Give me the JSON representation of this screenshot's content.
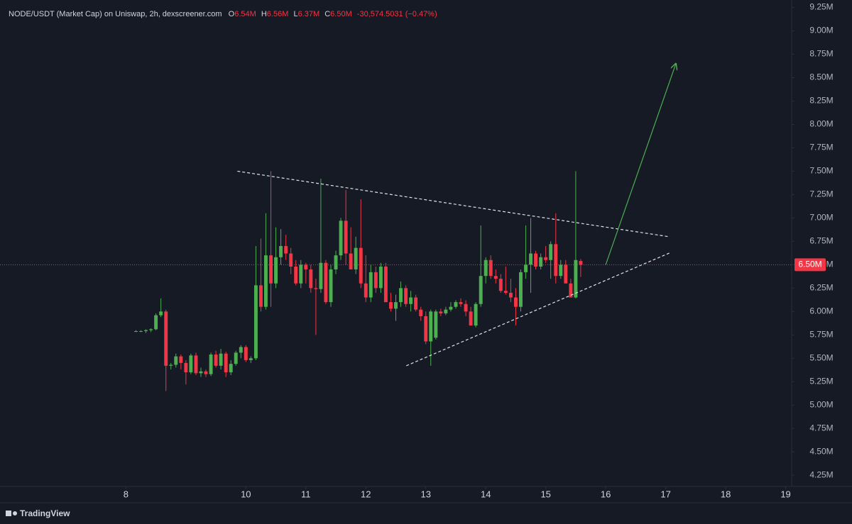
{
  "chart_data": {
    "type": "candlestick",
    "title": "NODE/USDT (Market Cap) on Uniswap, 2h, dexscreener.com",
    "ohlc_header": {
      "o_label": "O",
      "o": "6.54M",
      "h_label": "H",
      "h": "6.56M",
      "l_label": "L",
      "l": "6.37M",
      "c_label": "C",
      "c": "6.50M",
      "change": "-30,574.5031 (−0.47%)"
    },
    "x": [
      8.167,
      8.25,
      8.333,
      8.417,
      8.5,
      8.583,
      8.667,
      8.75,
      8.833,
      8.917,
      9,
      9.083,
      9.167,
      9.25,
      9.333,
      9.417,
      9.5,
      9.583,
      9.667,
      9.75,
      9.833,
      9.917,
      10,
      10.083,
      10.167,
      10.25,
      10.333,
      10.417,
      10.5,
      10.583,
      10.667,
      10.75,
      10.833,
      10.917,
      11,
      11.083,
      11.167,
      11.25,
      11.333,
      11.417,
      11.5,
      11.583,
      11.667,
      11.75,
      11.833,
      11.917,
      12,
      12.083,
      12.167,
      12.25,
      12.333,
      12.417,
      12.5,
      12.583,
      12.667,
      12.75,
      12.833,
      12.917,
      13,
      13.083,
      13.167,
      13.25,
      13.333,
      13.417,
      13.5,
      13.583,
      13.667,
      13.75,
      13.833,
      13.917,
      14,
      14.083,
      14.167,
      14.25,
      14.333,
      14.417,
      14.5,
      14.583,
      14.667,
      14.75,
      14.833,
      14.917,
      15,
      15.083,
      15.167,
      15.25,
      15.333,
      15.417,
      15.5,
      15.583
    ],
    "open": [
      5.79,
      5.79,
      5.79,
      5.8,
      5.81,
      5.96,
      6.0,
      5.42,
      5.43,
      5.52,
      5.45,
      5.35,
      5.53,
      5.34,
      5.36,
      5.33,
      5.54,
      5.42,
      5.55,
      5.35,
      5.44,
      5.56,
      5.62,
      5.48,
      5.5,
      6.28,
      6.05,
      6.6,
      6.3,
      6.58,
      6.7,
      6.62,
      6.48,
      6.3,
      6.5,
      6.45,
      6.25,
      6.24,
      6.52,
      6.1,
      6.45,
      6.6,
      6.97,
      6.62,
      6.45,
      6.68,
      6.3,
      6.15,
      6.42,
      6.25,
      6.48,
      6.1,
      6.03,
      6.1,
      6.25,
      6.08,
      6.15,
      6.02,
      5.95,
      5.68,
      5.72,
      6.0,
      5.98,
      6.02,
      6.05,
      6.1,
      6.08,
      6.0,
      5.85,
      6.08,
      6.38,
      6.55,
      6.38,
      6.35,
      6.22,
      6.2,
      6.15,
      6.05,
      6.42,
      6.5,
      6.62,
      6.48,
      6.58,
      6.55,
      6.72,
      6.38,
      6.5,
      6.3,
      6.15,
      6.54
    ],
    "high": [
      5.8,
      5.8,
      5.81,
      5.82,
      5.98,
      6.14,
      6.02,
      5.45,
      5.55,
      5.54,
      5.48,
      5.55,
      5.56,
      5.4,
      5.38,
      5.56,
      5.58,
      5.6,
      5.57,
      5.48,
      5.58,
      5.64,
      5.64,
      5.52,
      6.7,
      6.78,
      7.05,
      7.5,
      6.9,
      6.88,
      6.82,
      6.68,
      6.55,
      6.55,
      6.52,
      6.5,
      6.35,
      7.42,
      6.55,
      6.5,
      6.65,
      7.0,
      7.3,
      6.9,
      6.8,
      7.2,
      6.6,
      6.5,
      6.48,
      6.52,
      6.52,
      6.2,
      6.18,
      6.32,
      6.28,
      6.22,
      6.18,
      6.05,
      6.0,
      6.02,
      6.02,
      6.03,
      6.05,
      6.1,
      6.12,
      6.14,
      6.12,
      6.05,
      6.1,
      6.92,
      6.58,
      6.6,
      6.45,
      6.4,
      6.48,
      6.35,
      6.25,
      6.45,
      6.92,
      7.0,
      6.65,
      6.62,
      6.7,
      6.75,
      7.05,
      6.55,
      6.55,
      6.35,
      7.5,
      6.56
    ],
    "low": [
      5.78,
      5.78,
      5.77,
      5.78,
      5.8,
      5.94,
      5.15,
      5.38,
      5.4,
      5.38,
      5.22,
      5.33,
      5.32,
      5.3,
      5.3,
      5.31,
      5.4,
      5.38,
      5.3,
      5.32,
      5.42,
      5.5,
      5.46,
      5.45,
      5.48,
      6.0,
      6.02,
      6.05,
      6.25,
      6.5,
      6.55,
      6.4,
      6.28,
      6.25,
      6.3,
      6.2,
      5.75,
      6.2,
      6.08,
      6.05,
      6.4,
      6.55,
      6.5,
      6.45,
      6.4,
      6.25,
      6.1,
      6.1,
      6.2,
      6.2,
      6.1,
      6.0,
      5.9,
      6.05,
      6.05,
      6.0,
      6.0,
      5.9,
      5.65,
      5.42,
      5.7,
      5.95,
      5.96,
      6.0,
      6.03,
      6.05,
      5.95,
      5.85,
      5.83,
      6.05,
      6.3,
      6.35,
      6.3,
      6.2,
      6.18,
      6.1,
      5.85,
      6.0,
      6.35,
      6.2,
      6.45,
      6.45,
      6.52,
      6.35,
      6.3,
      6.35,
      6.3,
      6.15,
      6.14,
      6.37
    ],
    "close": [
      5.79,
      5.79,
      5.8,
      5.81,
      5.96,
      6.0,
      5.42,
      5.43,
      5.52,
      5.45,
      5.35,
      5.53,
      5.34,
      5.36,
      5.33,
      5.54,
      5.42,
      5.55,
      5.35,
      5.44,
      5.56,
      5.62,
      5.48,
      5.5,
      6.28,
      6.05,
      6.6,
      6.3,
      6.58,
      6.7,
      6.62,
      6.48,
      6.3,
      6.5,
      6.45,
      6.25,
      6.24,
      6.52,
      6.1,
      6.45,
      6.6,
      6.97,
      6.62,
      6.45,
      6.68,
      6.3,
      6.15,
      6.42,
      6.25,
      6.48,
      6.1,
      6.03,
      6.1,
      6.25,
      6.08,
      6.15,
      6.02,
      5.95,
      5.68,
      6.0,
      6.0,
      5.98,
      6.02,
      6.05,
      6.1,
      6.08,
      6.0,
      5.85,
      6.08,
      6.38,
      6.55,
      6.38,
      6.35,
      6.22,
      6.2,
      6.15,
      6.05,
      6.42,
      6.5,
      6.62,
      6.48,
      6.58,
      6.55,
      6.72,
      6.38,
      6.5,
      6.3,
      6.15,
      6.55,
      6.5
    ],
    "up_color": "#4caf50",
    "down_color": "#f23645",
    "xlim": [
      5.9,
      19.1
    ],
    "ylim": [
      4.13,
      9.33
    ],
    "xticks": [
      8,
      10,
      11,
      12,
      13,
      14,
      15,
      16,
      17,
      18,
      19
    ],
    "yticks": [
      {
        "value": 4.25,
        "label": "4.25M"
      },
      {
        "value": 4.5,
        "label": "4.50M"
      },
      {
        "value": 4.75,
        "label": "4.75M"
      },
      {
        "value": 5,
        "label": "5.00M"
      },
      {
        "value": 5.25,
        "label": "5.25M"
      },
      {
        "value": 5.5,
        "label": "5.50M"
      },
      {
        "value": 5.75,
        "label": "5.75M"
      },
      {
        "value": 6,
        "label": "6.00M"
      },
      {
        "value": 6.25,
        "label": "6.25M"
      },
      {
        "value": 6.5,
        "label": "6.50M"
      },
      {
        "value": 6.75,
        "label": "6.75M"
      },
      {
        "value": 7,
        "label": "7.00M"
      },
      {
        "value": 7.25,
        "label": "7.25M"
      },
      {
        "value": 7.5,
        "label": "7.50M"
      },
      {
        "value": 7.75,
        "label": "7.75M"
      },
      {
        "value": 8,
        "label": "8.00M"
      },
      {
        "value": 8.25,
        "label": "8.25M"
      },
      {
        "value": 8.5,
        "label": "8.50M"
      },
      {
        "value": 8.75,
        "label": "8.75M"
      },
      {
        "value": 9,
        "label": "9.00M"
      },
      {
        "value": 9.25,
        "label": "9.25M"
      }
    ],
    "last_price": {
      "value": 6.5,
      "label": "6.50M"
    },
    "trendlines": [
      {
        "x": [
          9.858,
          17.05
        ],
        "y": [
          7.5,
          6.8
        ],
        "color": "#e0e3eb",
        "dashed": true
      },
      {
        "x": [
          12.675,
          17.08
        ],
        "y": [
          5.42,
          6.63
        ],
        "color": "#e0e3eb",
        "dashed": true
      },
      {
        "x": [
          16.0,
          17.17
        ],
        "y": [
          6.5,
          8.65
        ],
        "color": "#4caf50",
        "dashed": false,
        "arrow": true
      }
    ],
    "watermark": "TradingView"
  }
}
